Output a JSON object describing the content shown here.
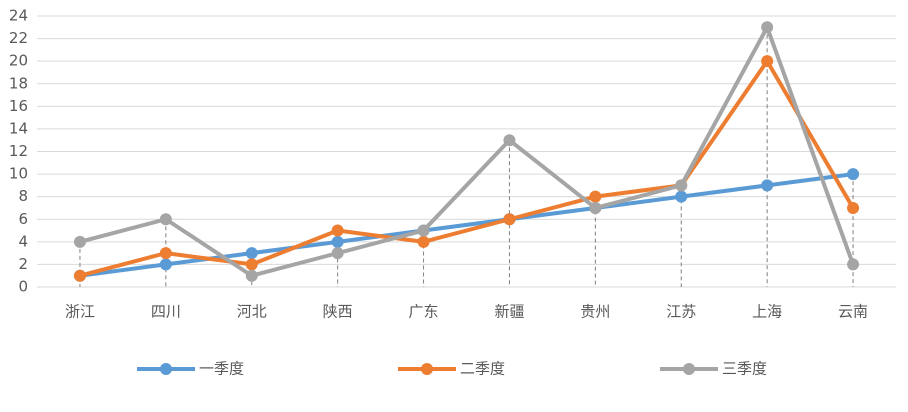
{
  "chart_data": {
    "type": "line",
    "categories": [
      "浙江",
      "四川",
      "河北",
      "陕西",
      "广东",
      "新疆",
      "贵州",
      "江苏",
      "上海",
      "云南"
    ],
    "series": [
      {
        "name": "一季度",
        "color": "#5b9bd5",
        "values": [
          1,
          2,
          3,
          4,
          5,
          6,
          7,
          8,
          9,
          10
        ]
      },
      {
        "name": "二季度",
        "color": "#ed7d31",
        "values": [
          1,
          3,
          2,
          5,
          4,
          6,
          8,
          9,
          20,
          7
        ]
      },
      {
        "name": "三季度",
        "color": "#a5a5a5",
        "values": [
          4,
          6,
          1,
          3,
          5,
          13,
          7,
          9,
          23,
          2
        ]
      }
    ],
    "ylim": [
      0,
      24
    ],
    "yticks": [
      0,
      2,
      4,
      6,
      8,
      10,
      12,
      14,
      16,
      18,
      20,
      22,
      24
    ],
    "grid": true,
    "drop_lines": true,
    "legend": "bottom"
  }
}
